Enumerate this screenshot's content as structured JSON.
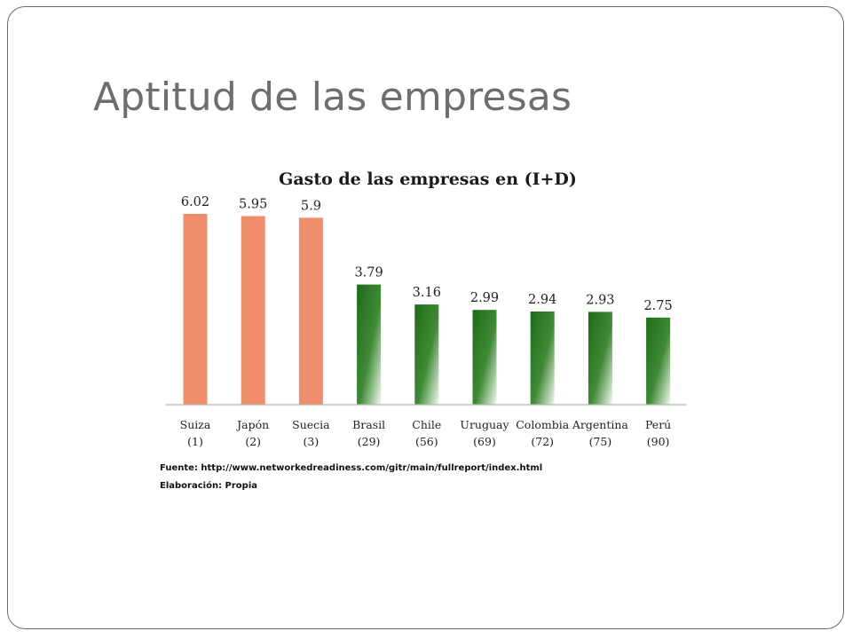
{
  "slide": {
    "title": "Aptitud de las empresas"
  },
  "colors": {
    "highlight_bar": "#f08e6c",
    "green_dark": "#1e6b16",
    "green_light": "#f2f8ef",
    "axis": "#b5b5b5"
  },
  "chart_data": {
    "type": "bar",
    "title": "Gasto de las empresas en (I+D)",
    "categories": [
      "Suiza",
      "Japón",
      "Suecia",
      "Brasil",
      "Chile",
      "Uruguay",
      "Colombia",
      "Argentina",
      "Perú"
    ],
    "ranks": [
      "(1)",
      "(2)",
      "(3)",
      "(29)",
      "(56)",
      "(69)",
      "(72)",
      "(75)",
      "(90)"
    ],
    "values": [
      6.02,
      5.95,
      5.9,
      3.79,
      3.16,
      2.99,
      2.94,
      2.93,
      2.75
    ],
    "value_labels": [
      "6.02",
      "5.95",
      "5.9",
      "3.79",
      "3.16",
      "2.99",
      "2.94",
      "2.93",
      "2.75"
    ],
    "bar_styles": [
      "orange",
      "orange",
      "orange",
      "green",
      "green",
      "green",
      "green",
      "green",
      "green"
    ],
    "xlabel": "",
    "ylabel": "",
    "ylim": [
      0,
      7
    ],
    "grid": false
  },
  "notes": {
    "source": "Fuente: http://www.networkedreadiness.com/gitr/main/fullreport/index.html",
    "author": "Elaboración: Propia"
  }
}
